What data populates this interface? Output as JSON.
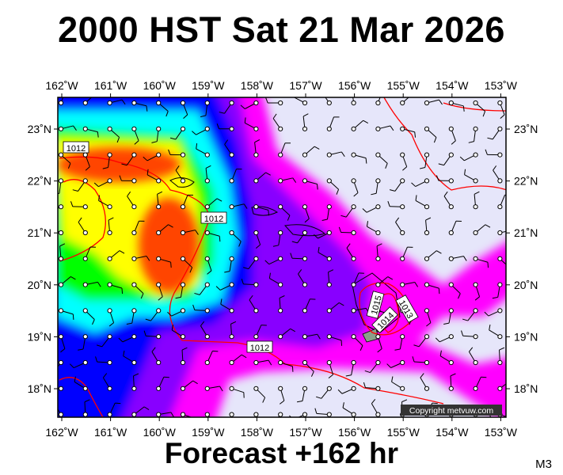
{
  "title": "2000 HST Sat 21 Mar 2026",
  "footer": "Forecast +162 hr",
  "model_label": "M3",
  "copyright": "Copyright metvuw.com",
  "map": {
    "lon_ticks": [
      "162˚W",
      "161˚W",
      "160˚W",
      "159˚W",
      "158˚W",
      "157˚W",
      "156˚W",
      "155˚W",
      "154˚W",
      "153˚W"
    ],
    "lat_ticks": [
      "23˚N",
      "22˚N",
      "21˚N",
      "20˚N",
      "19˚N",
      "18˚N"
    ],
    "lon_range": [
      -162,
      -153
    ],
    "lat_range": [
      17.5,
      23.6
    ],
    "isobar_labels": [
      "1012",
      "1012",
      "1012",
      "1015",
      "1014",
      "1013"
    ],
    "colors": {
      "background_low": "#e6e6fa",
      "magenta": "#ff00ff",
      "violet": "#8800ff",
      "blue": "#0000ff",
      "cyan": "#00ffff",
      "green": "#00ff00",
      "yellow": "#ffff00",
      "orange": "#ff4400",
      "isobar": "#ff0000"
    }
  }
}
